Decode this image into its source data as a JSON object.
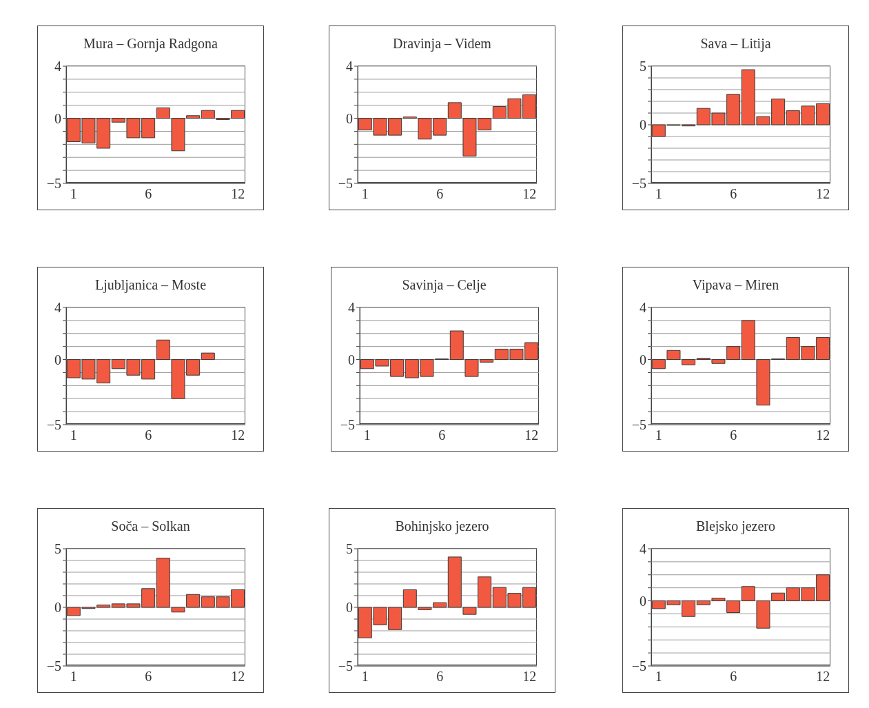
{
  "chart_data": [
    {
      "type": "bar",
      "title": "Mura – Gornja Radgona",
      "categories": [
        "1",
        null,
        null,
        null,
        null,
        "6",
        null,
        null,
        null,
        null,
        null,
        "12"
      ],
      "values": [
        -1.8,
        -1.9,
        -2.3,
        -0.3,
        -1.5,
        -1.5,
        0.8,
        -2.5,
        0.2,
        0.6,
        -0.1,
        0.6
      ],
      "color": "#f15a40",
      "ylim": [
        -5,
        4
      ],
      "yticks": [
        -5,
        {
          "value": -4,
          "label": null
        },
        {
          "value": -3,
          "label": null
        },
        {
          "value": -2,
          "label": null
        },
        {
          "value": -1,
          "label": null
        },
        0,
        {
          "value": 1,
          "label": null
        },
        {
          "value": 2,
          "label": null
        },
        {
          "value": 3,
          "label": null
        },
        4
      ],
      "grid": "y"
    },
    {
      "type": "bar",
      "title": "Dravinja – Videm",
      "categories": [
        "1",
        null,
        null,
        null,
        null,
        "6",
        null,
        null,
        null,
        null,
        null,
        "12"
      ],
      "values": [
        -0.9,
        -1.3,
        -1.3,
        0.1,
        -1.6,
        -1.3,
        1.2,
        -2.9,
        -0.9,
        0.9,
        1.5,
        1.8
      ],
      "color": "#f15a40",
      "ylim": [
        -5,
        4
      ],
      "yticks": [
        -5,
        {
          "value": -4,
          "label": null
        },
        {
          "value": -3,
          "label": null
        },
        {
          "value": -2,
          "label": null
        },
        {
          "value": -1,
          "label": null
        },
        0,
        {
          "value": 1,
          "label": null
        },
        {
          "value": 2,
          "label": null
        },
        {
          "value": 3,
          "label": null
        },
        4
      ],
      "grid": "y"
    },
    {
      "type": "bar",
      "title": "Sava – Litija",
      "categories": [
        "1",
        null,
        null,
        null,
        null,
        "6",
        null,
        null,
        null,
        null,
        null,
        "12"
      ],
      "values": [
        -1.0,
        -0.05,
        -0.1,
        1.4,
        1.0,
        2.6,
        4.7,
        0.7,
        2.2,
        1.2,
        1.6,
        1.8
      ],
      "color": "#f15a40",
      "ylim": [
        -5,
        5
      ],
      "yticks": [
        -5,
        {
          "value": -4,
          "label": null
        },
        {
          "value": -3,
          "label": null
        },
        {
          "value": -2,
          "label": null
        },
        {
          "value": -1,
          "label": null
        },
        0,
        {
          "value": 1,
          "label": null
        },
        {
          "value": 2,
          "label": null
        },
        {
          "value": 3,
          "label": null
        },
        {
          "value": 4,
          "label": null
        },
        5
      ],
      "grid": "y"
    },
    {
      "type": "bar",
      "title": "Ljubljanica – Moste",
      "categories": [
        "1",
        null,
        null,
        null,
        null,
        "6",
        null,
        null,
        null,
        null,
        null,
        "12"
      ],
      "values": [
        -1.4,
        -1.5,
        -1.8,
        -0.7,
        -1.2,
        -1.5,
        1.5,
        -3.0,
        -1.2,
        0.5,
        null,
        null
      ],
      "color": "#f15a40",
      "ylim": [
        -5,
        4
      ],
      "yticks": [
        -5,
        {
          "value": -4,
          "label": null
        },
        {
          "value": -3,
          "label": null
        },
        {
          "value": -2,
          "label": null
        },
        {
          "value": -1,
          "label": null
        },
        0,
        {
          "value": 1,
          "label": null
        },
        {
          "value": 2,
          "label": null
        },
        {
          "value": 3,
          "label": null
        },
        4
      ],
      "grid": "y"
    },
    {
      "type": "bar",
      "title": "Savinja – Celje",
      "categories": [
        "1",
        null,
        null,
        null,
        null,
        "6",
        null,
        null,
        null,
        null,
        null,
        "12"
      ],
      "values": [
        -0.7,
        -0.5,
        -1.3,
        -1.4,
        -1.3,
        0.05,
        2.2,
        -1.3,
        -0.2,
        0.8,
        0.8,
        1.3
      ],
      "color": "#f15a40",
      "ylim": [
        -5,
        4
      ],
      "yticks": [
        -5,
        {
          "value": -4,
          "label": null
        },
        {
          "value": -3,
          "label": null
        },
        {
          "value": -2,
          "label": null
        },
        {
          "value": -1,
          "label": null
        },
        0,
        {
          "value": 1,
          "label": null
        },
        {
          "value": 2,
          "label": null
        },
        {
          "value": 3,
          "label": null
        },
        4
      ],
      "grid": "y"
    },
    {
      "type": "bar",
      "title": "Vipava – Miren",
      "categories": [
        "1",
        null,
        null,
        null,
        null,
        "6",
        null,
        null,
        null,
        null,
        null,
        "12"
      ],
      "values": [
        -0.7,
        0.7,
        -0.4,
        0.1,
        -0.3,
        1.0,
        3.0,
        -3.5,
        0.05,
        1.7,
        1.0,
        1.7
      ],
      "color": "#f15a40",
      "ylim": [
        -5,
        4
      ],
      "yticks": [
        -5,
        {
          "value": -4,
          "label": null
        },
        {
          "value": -3,
          "label": null
        },
        {
          "value": -2,
          "label": null
        },
        {
          "value": -1,
          "label": null
        },
        0,
        {
          "value": 1,
          "label": null
        },
        {
          "value": 2,
          "label": null
        },
        {
          "value": 3,
          "label": null
        },
        4
      ],
      "grid": "y"
    },
    {
      "type": "bar",
      "title": "Soča – Solkan",
      "categories": [
        "1",
        null,
        null,
        null,
        null,
        "6",
        null,
        null,
        null,
        null,
        null,
        "12"
      ],
      "values": [
        -0.7,
        -0.1,
        0.2,
        0.3,
        0.3,
        1.6,
        4.2,
        -0.4,
        1.1,
        0.9,
        0.9,
        1.5
      ],
      "color": "#f15a40",
      "ylim": [
        -5,
        5
      ],
      "yticks": [
        -5,
        {
          "value": -4,
          "label": null
        },
        {
          "value": -3,
          "label": null
        },
        {
          "value": -2,
          "label": null
        },
        {
          "value": -1,
          "label": null
        },
        0,
        {
          "value": 1,
          "label": null
        },
        {
          "value": 2,
          "label": null
        },
        {
          "value": 3,
          "label": null
        },
        {
          "value": 4,
          "label": null
        },
        5
      ],
      "grid": "y"
    },
    {
      "type": "bar",
      "title": "Bohinjsko jezero",
      "categories": [
        "1",
        null,
        null,
        null,
        null,
        "6",
        null,
        null,
        null,
        null,
        null,
        "12"
      ],
      "values": [
        -2.6,
        -1.5,
        -1.9,
        1.5,
        -0.2,
        0.4,
        4.3,
        -0.6,
        2.6,
        1.7,
        1.2,
        1.7
      ],
      "color": "#f15a40",
      "ylim": [
        -5,
        5
      ],
      "yticks": [
        -5,
        {
          "value": -4,
          "label": null
        },
        {
          "value": -3,
          "label": null
        },
        {
          "value": -2,
          "label": null
        },
        {
          "value": -1,
          "label": null
        },
        0,
        {
          "value": 1,
          "label": null
        },
        {
          "value": 2,
          "label": null
        },
        {
          "value": 3,
          "label": null
        },
        {
          "value": 4,
          "label": null
        },
        5
      ],
      "grid": "y"
    },
    {
      "type": "bar",
      "title": "Blejsko jezero",
      "categories": [
        "1",
        null,
        null,
        null,
        null,
        "6",
        null,
        null,
        null,
        null,
        null,
        "12"
      ],
      "values": [
        -0.6,
        -0.3,
        -1.2,
        -0.3,
        0.2,
        -0.9,
        1.1,
        -2.1,
        0.6,
        1.0,
        1.0,
        2.0
      ],
      "color": "#f15a40",
      "ylim": [
        -5,
        4
      ],
      "yticks": [
        -5,
        {
          "value": -4,
          "label": null
        },
        {
          "value": -3,
          "label": null
        },
        {
          "value": -2,
          "label": null
        },
        {
          "value": -1,
          "label": null
        },
        0,
        {
          "value": 1,
          "label": null
        },
        {
          "value": 2,
          "label": null
        },
        {
          "value": 3,
          "label": null
        },
        4
      ],
      "grid": "y"
    }
  ]
}
